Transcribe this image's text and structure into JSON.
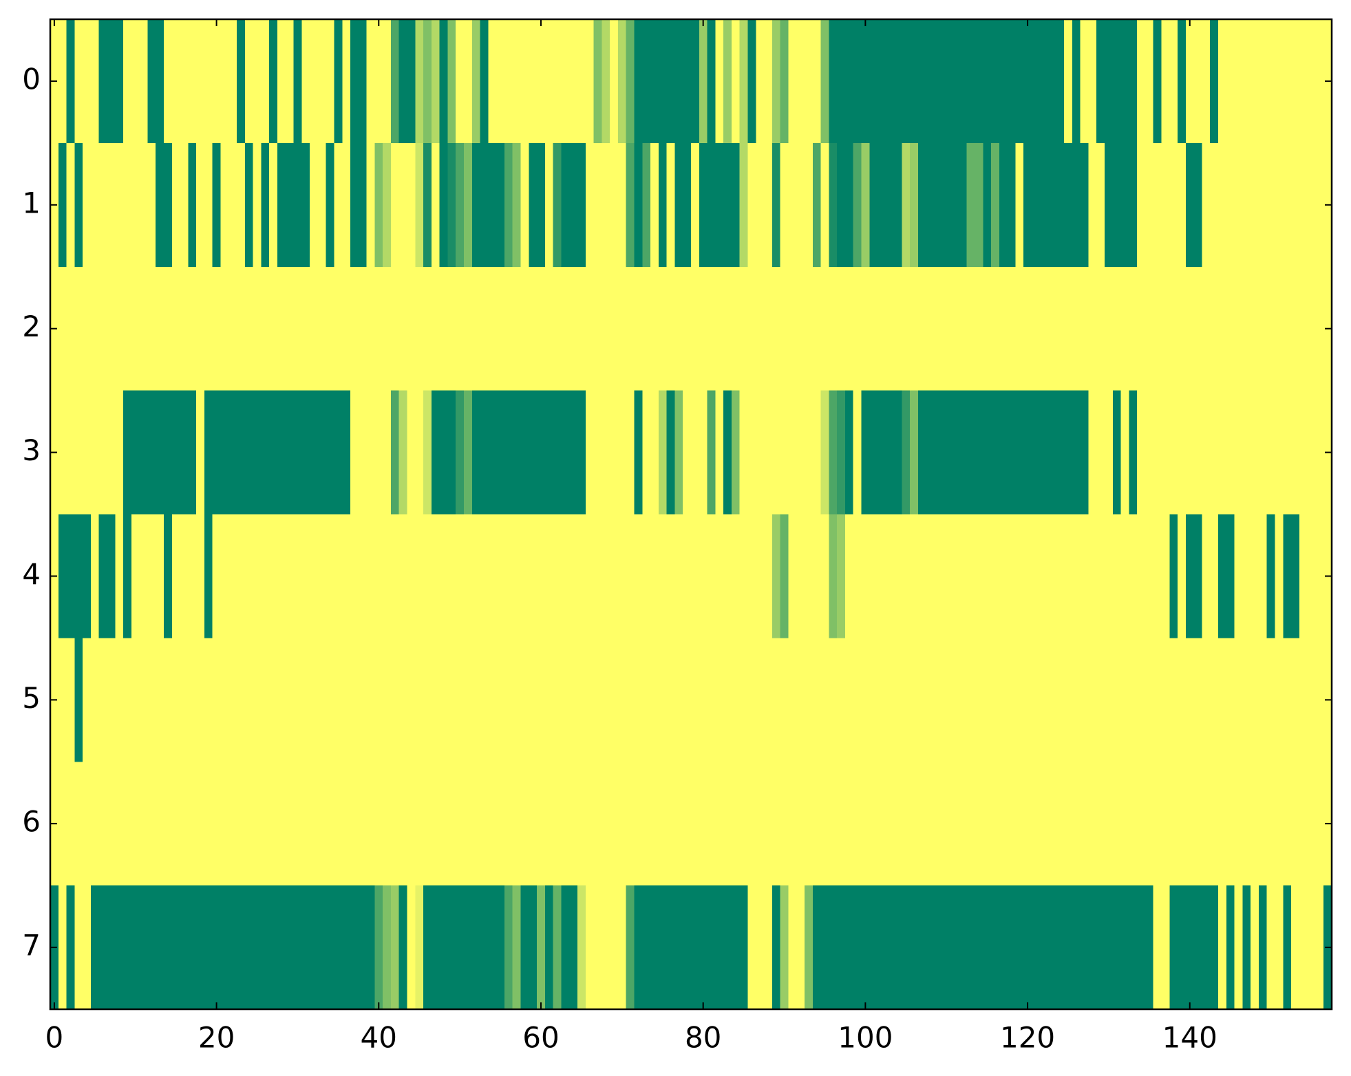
{
  "chart_data": {
    "type": "heatmap",
    "xlim": [
      -0.5,
      157.5
    ],
    "ylim": [
      7.5,
      -0.5
    ],
    "xticks": [
      0,
      20,
      40,
      60,
      80,
      100,
      120,
      140
    ],
    "yticks": [
      0,
      1,
      2,
      3,
      4,
      5,
      6,
      7
    ],
    "vlim": [
      0,
      1
    ],
    "colormap": [
      "#ffff66",
      "#008066"
    ],
    "values": [
      [
        0,
        0,
        1,
        0,
        0,
        0,
        1,
        1,
        1,
        0,
        0,
        0,
        1,
        1,
        0,
        0,
        0,
        0,
        0,
        0,
        0,
        0,
        0,
        1,
        0,
        0,
        0,
        1,
        0,
        0,
        1,
        0,
        0,
        0,
        0,
        1,
        0,
        1,
        1,
        0,
        0,
        0,
        0.7,
        1,
        1,
        0.3,
        0.5,
        0.3,
        1,
        0.5,
        0,
        0,
        0.4,
        1,
        0,
        0,
        0,
        0,
        0,
        0,
        0,
        0,
        0,
        0,
        0,
        0,
        0,
        0.5,
        0.3,
        0,
        0.3,
        0.6,
        1,
        1,
        1,
        1,
        1,
        1,
        1,
        1,
        0.4,
        1,
        0,
        0.4,
        0,
        0.3,
        1,
        0,
        0,
        0.4,
        0.6,
        0,
        0,
        0,
        0,
        0.5,
        1,
        1,
        1,
        1,
        1,
        1,
        1,
        1,
        1,
        1,
        1,
        1,
        1,
        1,
        1,
        1,
        1,
        1,
        1,
        1,
        1,
        1,
        1,
        1,
        1,
        1,
        1,
        1,
        1,
        0,
        1,
        0,
        0,
        1,
        1,
        1,
        1,
        1,
        0,
        0,
        1,
        0,
        0,
        1,
        0,
        0,
        0,
        1,
        0,
        0,
        0,
        0,
        0,
        0,
        0,
        0,
        0,
        0,
        0,
        0,
        0,
        0
      ],
      [
        0,
        1,
        0,
        1,
        0,
        0,
        0,
        0,
        0,
        0,
        0,
        0,
        0,
        1,
        1,
        0,
        0,
        1,
        0,
        0,
        1,
        0,
        0,
        0,
        1,
        0,
        1,
        0,
        1,
        1,
        1,
        1,
        0,
        0,
        1,
        0,
        0,
        1,
        1,
        0,
        0.5,
        0.3,
        0,
        0,
        0,
        0.2,
        0.9,
        0,
        1,
        0.9,
        0.7,
        0.5,
        1,
        1,
        1,
        1,
        0.7,
        0.5,
        0,
        1,
        1,
        0,
        0.8,
        1,
        1,
        1,
        0,
        0,
        0,
        0,
        0,
        0.7,
        1,
        0.7,
        0,
        1,
        0,
        1,
        1,
        0,
        1,
        1,
        1,
        1,
        1,
        0.3,
        0,
        0,
        0,
        0.9,
        0,
        0,
        0,
        0,
        0.7,
        0,
        0.9,
        1,
        1,
        0.7,
        0.4,
        1,
        1,
        1,
        1,
        0.3,
        0.4,
        1,
        1,
        1,
        1,
        1,
        1,
        0.6,
        0.6,
        1,
        0.6,
        1,
        1,
        0,
        1,
        1,
        1,
        1,
        1,
        1,
        1,
        1,
        0,
        0,
        1,
        1,
        1,
        1,
        0,
        0,
        0,
        0,
        0,
        0,
        1,
        1,
        0,
        0,
        0,
        0,
        0,
        0,
        0,
        0,
        0,
        0,
        0,
        0,
        0,
        0,
        0,
        0
      ],
      [
        0,
        0,
        0,
        0,
        0,
        0,
        0,
        0,
        0,
        0,
        0,
        0,
        0,
        0,
        0,
        0,
        0,
        0,
        0,
        0,
        0,
        0,
        0,
        0,
        0,
        0,
        0,
        0,
        0,
        0,
        0,
        0,
        0,
        0,
        0,
        0,
        0,
        0,
        0,
        0,
        0,
        0,
        0,
        0,
        0,
        0,
        0,
        0,
        0,
        0,
        0,
        0,
        0,
        0,
        0,
        0,
        0,
        0,
        0,
        0,
        0,
        0,
        0,
        0,
        0,
        0,
        0,
        0,
        0,
        0,
        0,
        0,
        0,
        0,
        0,
        0,
        0,
        0,
        0,
        0,
        0,
        0,
        0,
        0,
        0,
        0,
        0,
        0,
        0,
        0,
        0,
        0,
        0,
        0,
        0,
        0,
        0,
        0,
        0,
        0,
        0,
        0,
        0,
        0,
        0,
        0,
        0,
        0,
        0,
        0,
        0,
        0,
        0,
        0,
        0,
        0,
        0,
        0,
        0,
        0,
        0,
        0,
        0,
        0,
        0,
        0,
        0,
        0,
        0,
        0,
        0,
        0,
        0,
        0,
        0,
        0,
        0,
        0,
        0,
        0,
        0,
        0,
        0,
        0,
        0,
        0,
        0,
        0,
        0,
        0,
        0,
        0,
        0,
        0,
        0,
        0,
        0,
        0
      ],
      [
        0,
        0,
        0,
        0,
        0,
        0,
        0,
        0,
        0,
        1,
        1,
        1,
        1,
        1,
        1,
        1,
        1,
        1,
        0,
        1,
        1,
        1,
        1,
        1,
        1,
        1,
        1,
        1,
        1,
        1,
        1,
        1,
        1,
        1,
        1,
        1,
        1,
        0,
        0,
        0,
        0,
        0,
        0.7,
        0.3,
        0,
        0,
        0.2,
        1,
        1,
        1,
        0.8,
        0.6,
        1,
        1,
        1,
        1,
        1,
        1,
        1,
        1,
        1,
        1,
        1,
        1,
        1,
        1,
        0,
        0,
        0,
        0,
        0,
        0,
        1,
        0,
        0,
        0.3,
        1,
        0.5,
        0,
        0,
        0,
        0.7,
        0,
        1,
        0.5,
        0,
        0,
        0,
        0,
        0,
        0,
        0,
        0,
        0,
        0,
        0.2,
        0.7,
        0.8,
        1,
        0,
        1,
        1,
        1,
        1,
        1,
        0.8,
        0.5,
        1,
        1,
        1,
        1,
        1,
        1,
        1,
        1,
        1,
        1,
        1,
        1,
        1,
        1,
        1,
        1,
        1,
        1,
        1,
        1,
        1,
        0,
        0,
        0,
        1,
        0,
        1,
        0,
        0,
        0,
        0,
        0,
        0,
        0,
        0,
        0,
        0,
        0,
        0,
        0,
        0,
        0,
        0,
        0,
        0,
        0,
        0,
        0,
        0,
        0,
        0
      ],
      [
        0,
        1,
        1,
        1,
        1,
        0,
        1,
        1,
        0,
        1,
        0,
        0,
        0,
        0,
        1,
        0,
        0,
        0,
        0,
        1,
        0,
        0,
        0,
        0,
        0,
        0,
        0,
        0,
        0,
        0,
        0,
        0,
        0,
        0,
        0,
        0,
        0,
        0,
        0,
        0,
        0,
        0,
        0,
        0,
        0,
        0,
        0,
        0,
        0,
        0,
        0,
        0,
        0,
        0,
        0,
        0,
        0,
        0,
        0,
        0,
        0,
        0,
        0,
        0,
        0,
        0,
        0,
        0,
        0,
        0,
        0,
        0,
        0,
        0,
        0,
        0,
        0,
        0,
        0,
        0,
        0,
        0,
        0,
        0,
        0,
        0,
        0,
        0,
        0,
        0.4,
        0.6,
        0,
        0,
        0,
        0,
        0,
        0.5,
        0.4,
        0,
        0,
        0,
        0,
        0,
        0,
        0,
        0,
        0,
        0,
        0,
        0,
        0,
        0,
        0,
        0,
        0,
        0,
        0,
        0,
        0,
        0,
        0,
        0,
        0,
        0,
        0,
        0,
        0,
        0,
        0,
        0,
        0,
        0,
        0,
        0,
        0,
        0,
        0,
        0,
        1,
        0,
        1,
        1,
        0,
        0,
        1,
        1,
        0,
        0,
        0,
        0,
        1,
        0,
        1,
        1,
        0,
        0,
        0,
        0
      ],
      [
        0,
        0,
        0,
        1,
        0,
        0,
        0,
        0,
        0,
        0,
        0,
        0,
        0,
        0,
        0,
        0,
        0,
        0,
        0,
        0,
        0,
        0,
        0,
        0,
        0,
        0,
        0,
        0,
        0,
        0,
        0,
        0,
        0,
        0,
        0,
        0,
        0,
        0,
        0,
        0,
        0,
        0,
        0,
        0,
        0,
        0,
        0,
        0,
        0,
        0,
        0,
        0,
        0,
        0,
        0,
        0,
        0,
        0,
        0,
        0,
        0,
        0,
        0,
        0,
        0,
        0,
        0,
        0,
        0,
        0,
        0,
        0,
        0,
        0,
        0,
        0,
        0,
        0,
        0,
        0,
        0,
        0,
        0,
        0,
        0,
        0,
        0,
        0,
        0,
        0,
        0,
        0,
        0,
        0,
        0,
        0,
        0,
        0,
        0,
        0,
        0,
        0,
        0,
        0,
        0,
        0,
        0,
        0,
        0,
        0,
        0,
        0,
        0,
        0,
        0,
        0,
        0,
        0,
        0,
        0,
        0,
        0,
        0,
        0,
        0,
        0,
        0,
        0,
        0,
        0,
        0,
        0,
        0,
        0,
        0,
        0,
        0,
        0,
        0,
        0,
        0,
        0,
        0,
        0,
        0,
        0,
        0,
        0,
        0,
        0,
        0,
        0,
        0,
        0,
        0,
        0,
        0,
        0
      ],
      [
        0,
        0,
        0,
        0,
        0,
        0,
        0,
        0,
        0,
        0,
        0,
        0,
        0,
        0,
        0,
        0,
        0,
        0,
        0,
        0,
        0,
        0,
        0,
        0,
        0,
        0,
        0,
        0,
        0,
        0,
        0,
        0,
        0,
        0,
        0,
        0,
        0,
        0,
        0,
        0,
        0,
        0,
        0,
        0,
        0,
        0,
        0,
        0,
        0,
        0,
        0,
        0,
        0,
        0,
        0,
        0,
        0,
        0,
        0,
        0,
        0,
        0,
        0,
        0,
        0,
        0,
        0,
        0,
        0,
        0,
        0,
        0,
        0,
        0,
        0,
        0,
        0,
        0,
        0,
        0,
        0,
        0,
        0,
        0,
        0,
        0,
        0,
        0,
        0,
        0,
        0,
        0,
        0,
        0,
        0,
        0,
        0,
        0,
        0,
        0,
        0,
        0,
        0,
        0,
        0,
        0,
        0,
        0,
        0,
        0,
        0,
        0,
        0,
        0,
        0,
        0,
        0,
        0,
        0,
        0,
        0,
        0,
        0,
        0,
        0,
        0,
        0,
        0,
        0,
        0,
        0,
        0,
        0,
        0,
        0,
        0,
        0,
        0,
        0,
        0,
        0,
        0,
        0,
        0,
        0,
        0,
        0,
        0,
        0,
        0,
        0,
        0,
        0,
        0,
        0,
        0,
        0,
        0
      ],
      [
        1,
        0,
        1,
        0,
        0,
        1,
        1,
        1,
        1,
        1,
        1,
        1,
        1,
        1,
        1,
        1,
        1,
        1,
        1,
        1,
        1,
        1,
        1,
        1,
        1,
        1,
        1,
        1,
        1,
        1,
        1,
        1,
        1,
        1,
        1,
        1,
        1,
        1,
        1,
        1,
        0.7,
        0.5,
        0.4,
        1,
        0,
        0.1,
        1,
        1,
        1,
        1,
        1,
        1,
        1,
        1,
        1,
        1,
        0.7,
        0.5,
        1,
        1,
        0.5,
        1,
        0.6,
        1,
        1,
        0.2,
        0,
        0,
        0,
        0,
        0,
        0.7,
        1,
        1,
        1,
        1,
        1,
        1,
        1,
        1,
        1,
        1,
        1,
        1,
        1,
        1,
        0,
        0,
        0,
        1,
        0.4,
        0,
        0,
        0.5,
        1,
        1,
        1,
        1,
        1,
        1,
        1,
        1,
        1,
        1,
        1,
        1,
        1,
        1,
        1,
        1,
        1,
        1,
        1,
        1,
        1,
        1,
        1,
        1,
        1,
        1,
        1,
        1,
        1,
        1,
        1,
        1,
        1,
        1,
        1,
        1,
        1,
        1,
        1,
        1,
        1,
        1,
        0,
        0,
        1,
        1,
        1,
        1,
        1,
        1,
        0,
        1,
        0,
        1,
        0,
        1,
        0,
        0,
        1,
        0,
        0,
        0,
        0,
        1
      ]
    ]
  }
}
